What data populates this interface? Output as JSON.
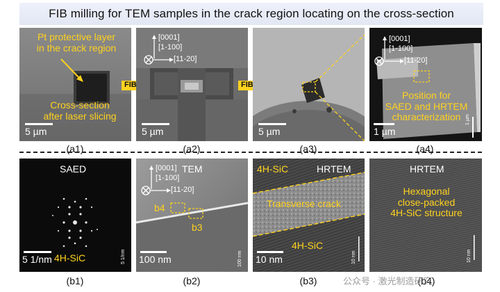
{
  "title": "FIB milling for TEM samples in the crack region locating on the cross-section",
  "fib_label": "FIB",
  "top_row": {
    "a1": {
      "caption": "(a1)",
      "label_top": "Pt protective layer\nin the crack region",
      "label_bottom": "Cross-section\nafter laser slicing",
      "scale": "5 µm"
    },
    "a2": {
      "caption": "(a2)",
      "scale": "5 µm",
      "axes": {
        "up": "[0001]",
        "mid": "[1-100]",
        "right": "[11-20]"
      }
    },
    "a3": {
      "caption": "(a3)",
      "scale": "5 µm"
    },
    "a4": {
      "caption": "(a4)",
      "axes": {
        "up": "[0001]",
        "mid": "[1-100]",
        "right": "[11-20]"
      },
      "label": "Position for\nSAED and HRTEM\ncharacterization",
      "scale": "1 µm",
      "scale_small": "1 µm"
    }
  },
  "bottom_row": {
    "b1": {
      "caption": "(b1)",
      "title": "SAED",
      "label": "4H-SiC",
      "scale": "5 1/nm",
      "scale_small": "5 1/nm"
    },
    "b2": {
      "caption": "(b2)",
      "title": "TEM",
      "axes": {
        "up": "[0001]",
        "mid": "[1-100]",
        "right": "[11-20]"
      },
      "box_b4": "b4",
      "box_b3": "b3",
      "scale": "100 nm",
      "scale_small": "100 nm"
    },
    "b3": {
      "caption": "(b3)",
      "title": "HRTEM",
      "label_top": "4H-SiC",
      "label_mid": "Transverse crack",
      "label_bottom": "4H-SiC",
      "scale": "10 nm",
      "scale_small": "10 nm"
    },
    "b4": {
      "caption": "(b4)",
      "title": "HRTEM",
      "label": "Hexagonal\nclose-packed\n4H-SiC structure",
      "scale_small": "10 nm"
    }
  },
  "watermark": "公众号 · 激光制造研究"
}
